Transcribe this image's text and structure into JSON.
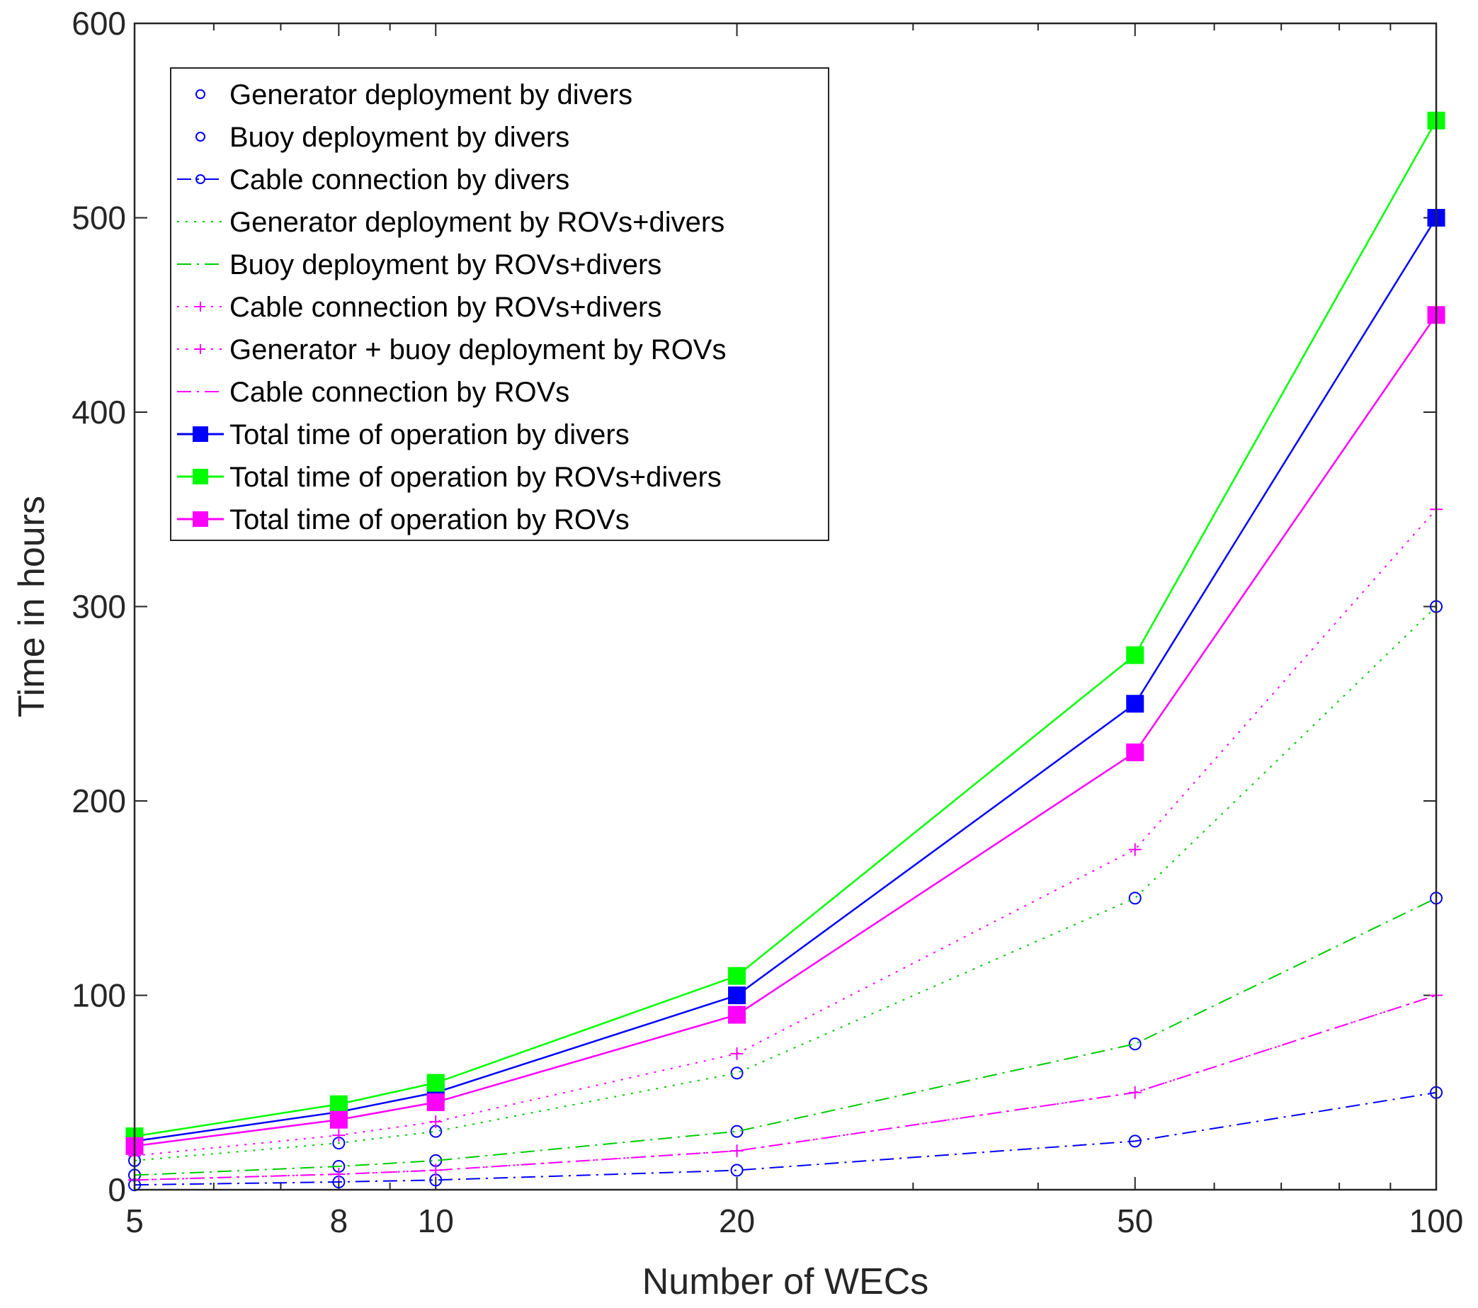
{
  "chart_data": {
    "type": "line",
    "xscale": "log",
    "xlabel": "Number of WECs",
    "ylabel": "Time in hours",
    "xlim": [
      5,
      100
    ],
    "ylim": [
      0,
      600
    ],
    "xticks": [
      5,
      8,
      10,
      20,
      50,
      100
    ],
    "yticks": [
      0,
      100,
      200,
      300,
      400,
      500,
      600
    ],
    "legend_position": "top-left",
    "x": [
      5,
      8,
      10,
      20,
      50,
      100
    ],
    "series": [
      {
        "name": "Generator deployment by divers",
        "values": [
          15,
          24,
          30,
          60,
          150,
          300
        ],
        "color": "#0000ff",
        "style": "none",
        "marker": "circle"
      },
      {
        "name": "Buoy deployment by divers",
        "values": [
          7.5,
          12,
          15,
          30,
          75,
          150
        ],
        "color": "#0000ff",
        "style": "none",
        "marker": "circle"
      },
      {
        "name": "Cable connection by divers",
        "values": [
          2.5,
          4,
          5,
          10,
          25,
          50
        ],
        "color": "#0000ff",
        "style": "dashdot",
        "marker": "circle"
      },
      {
        "name": "Generator deployment by ROVs+divers",
        "values": [
          15,
          24,
          30,
          60,
          150,
          300
        ],
        "color": "#00cc00",
        "style": "dotted",
        "marker": "none"
      },
      {
        "name": "Buoy deployment by ROVs+divers",
        "values": [
          7.5,
          12,
          15,
          30,
          75,
          150
        ],
        "color": "#00cc00",
        "style": "dashdot",
        "marker": "none"
      },
      {
        "name": "Cable connection by ROVs+divers",
        "values": [
          5,
          8,
          10,
          20,
          50,
          100
        ],
        "color": "#ff00ff",
        "style": "dotted",
        "marker": "plus"
      },
      {
        "name": "Generator + buoy deployment by ROVs",
        "values": [
          17.5,
          28,
          35,
          70,
          175,
          350
        ],
        "color": "#ff00ff",
        "style": "dotted",
        "marker": "plus"
      },
      {
        "name": "Cable connection by ROVs",
        "values": [
          5,
          8,
          10,
          20,
          50,
          100
        ],
        "color": "#ff00ff",
        "style": "dashdot",
        "marker": "none"
      },
      {
        "name": "Total time of operation by divers",
        "values": [
          25,
          40,
          50,
          100,
          250,
          500
        ],
        "color": "#0000ff",
        "style": "solid",
        "marker": "square"
      },
      {
        "name": "Total time of operation by ROVs+divers",
        "values": [
          27.5,
          44,
          55,
          110,
          275,
          550
        ],
        "color": "#00ff00",
        "style": "solid",
        "marker": "square"
      },
      {
        "name": "Total time of operation by ROVs",
        "values": [
          22.5,
          36,
          45,
          90,
          225,
          450
        ],
        "color": "#ff00ff",
        "style": "solid",
        "marker": "square"
      }
    ]
  }
}
